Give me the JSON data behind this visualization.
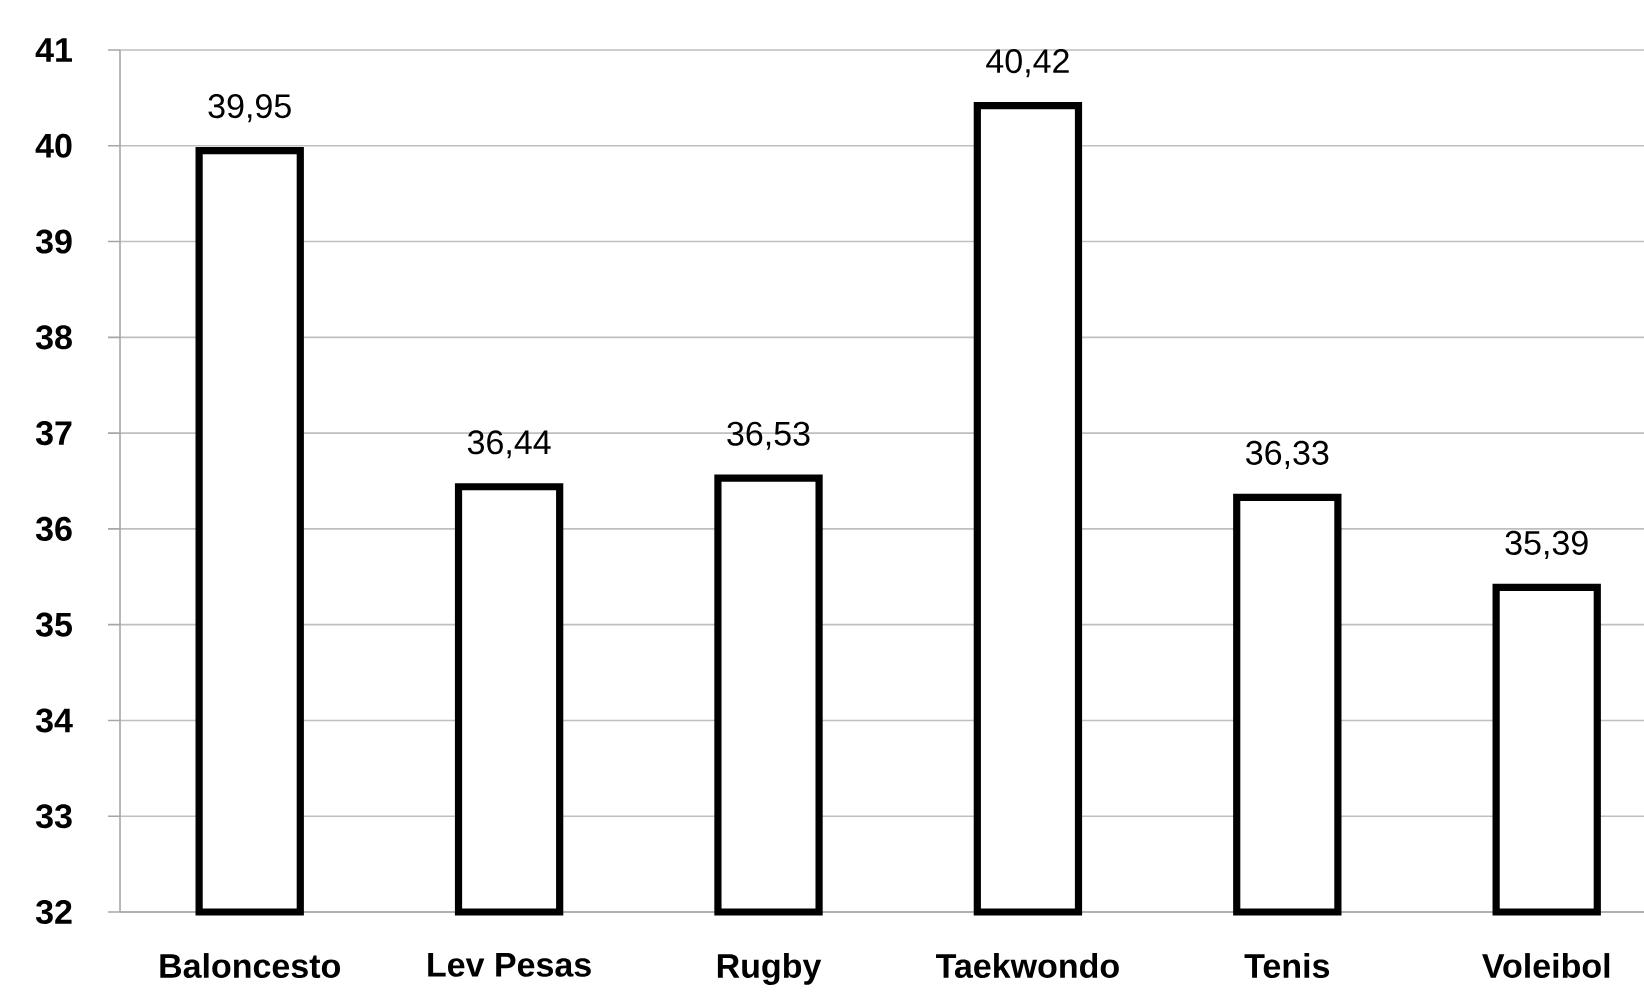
{
  "chart_data": {
    "type": "bar",
    "categories": [
      "Baloncesto",
      "Lev Pesas",
      "Rugby",
      "Taekwondo",
      "Tenis",
      "Voleibol"
    ],
    "values": [
      39.95,
      36.44,
      36.53,
      40.42,
      36.33,
      35.39
    ],
    "value_labels": [
      "39,95",
      "36,44",
      "36,53",
      "40,42",
      "36,33",
      "35,39"
    ],
    "color": "#ffffff",
    "ylim": [
      32,
      41
    ],
    "yticks": [
      32,
      33,
      34,
      35,
      36,
      37,
      38,
      39,
      40,
      41
    ],
    "grid": "y"
  }
}
